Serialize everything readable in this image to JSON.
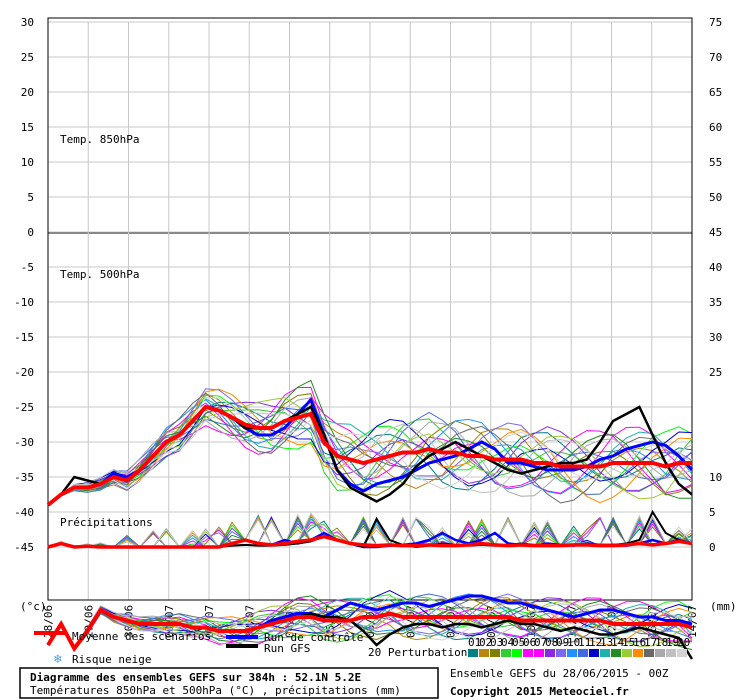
{
  "chart_data": {
    "type": "line",
    "left_axis": {
      "unit_label": "(°c)",
      "ticks": [
        30,
        25,
        20,
        15,
        10,
        5,
        0,
        -5,
        -10,
        -15,
        -20,
        -25,
        -30,
        -35,
        -40,
        -45
      ],
      "range": [
        -45,
        30
      ]
    },
    "right_axis_850": {
      "ticks": [
        75,
        70,
        65,
        60,
        55,
        50,
        45
      ],
      "range": [
        45,
        75
      ]
    },
    "right_axis_500": {
      "ticks": [
        40,
        35,
        30,
        25
      ],
      "range": [
        20,
        40
      ]
    },
    "right_axis_precip": {
      "unit_label": "(mm)",
      "ticks": [
        10,
        5,
        0
      ],
      "range": [
        0,
        10
      ]
    },
    "x_ticks": [
      "28/06",
      "29/06",
      "30/06",
      "01/07",
      "02/07",
      "03/07",
      "04/07",
      "05/07",
      "06/07",
      "07/07",
      "08/07",
      "09/07",
      "10/07",
      "11/07",
      "12/07",
      "13/07",
      "14/07"
    ],
    "panels": {
      "t850": {
        "label": "Temp. 850hPa"
      },
      "t500": {
        "label": "Temp. 500hPa"
      },
      "precip": {
        "label": "Précipitations"
      }
    },
    "series": [
      {
        "name": "Moyenne des scénarios",
        "color": "#ff0000",
        "t850": [
          6,
          7.5,
          8.5,
          8.5,
          9,
          10,
          9.5,
          11,
          13,
          15,
          16,
          18,
          20,
          19.5,
          18.5,
          17.5,
          17,
          17,
          18,
          18.5,
          19,
          15,
          13,
          12.5,
          12,
          12.5,
          13,
          13.5,
          13.5,
          14,
          13.5,
          13.5,
          13,
          13,
          12.5,
          12.5,
          12.5,
          12,
          12,
          11.5,
          11.5,
          11.5,
          11.5,
          12,
          12,
          12,
          12,
          11.5,
          12,
          12
        ],
        "t500": [
          -14,
          -11,
          -14.5,
          -12,
          -9,
          -10,
          -10.5,
          -11,
          -11,
          -11,
          -11,
          -11.5,
          -11.5,
          -12,
          -12,
          -12,
          -11.5,
          -11,
          -10.5,
          -10,
          -10,
          -10.5,
          -10.5,
          -10.5,
          -10,
          -10,
          -9.5,
          -10,
          -10,
          -10,
          -10,
          -10,
          -10,
          -10,
          -10,
          -10,
          -10.5,
          -10.5,
          -10.5,
          -10.5,
          -10.5,
          -10.5,
          -10.5,
          -11,
          -11,
          -11,
          -11,
          -11,
          -11,
          -11.5
        ],
        "precip": [
          0,
          0.5,
          0,
          0.1,
          0,
          0,
          0,
          0,
          0,
          0,
          0,
          0,
          0,
          0,
          0.5,
          1,
          0.5,
          0.3,
          0.5,
          0.8,
          1,
          1.5,
          1,
          0.5,
          0.3,
          0.2,
          0.3,
          0.2,
          0.2,
          0.3,
          0.2,
          0.2,
          0.3,
          0.5,
          0.3,
          0.2,
          0.3,
          0.2,
          0.2,
          0.2,
          0.3,
          0.3,
          0.2,
          0.2,
          0.3,
          0.5,
          0.3,
          0.5,
          0.8,
          0.5
        ]
      },
      {
        "name": "Run de contrôle",
        "color": "#0000ff",
        "t850": [
          6,
          7.5,
          8.5,
          8.5,
          9,
          10.5,
          10,
          11,
          13,
          15,
          16,
          18,
          20,
          19.5,
          18.5,
          17,
          16,
          16,
          17,
          19,
          21,
          16,
          11,
          9,
          8,
          9,
          9.5,
          10,
          11,
          12,
          12.5,
          13,
          14,
          15,
          14,
          12,
          12,
          11.5,
          11,
          11,
          11,
          11.5,
          12.5,
          13,
          14,
          14.5,
          15,
          14.5,
          13,
          11
        ],
        "t500": [
          -14,
          -11,
          -14.5,
          -12,
          -9,
          -10,
          -10.5,
          -11,
          -11,
          -11,
          -11,
          -11.5,
          -11.5,
          -12,
          -12,
          -12,
          -11.5,
          -10.5,
          -10,
          -9.5,
          -9.5,
          -10,
          -9,
          -8,
          -8.5,
          -9,
          -8.5,
          -8,
          -8,
          -8.5,
          -8,
          -7.5,
          -7,
          -7,
          -7.5,
          -8,
          -8,
          -8.5,
          -9,
          -9.5,
          -10,
          -9.5,
          -9,
          -9,
          -9.5,
          -10,
          -10,
          -10.5,
          -10.5,
          -11
        ],
        "precip": [
          0,
          0.5,
          0,
          0.1,
          0,
          0,
          0,
          0,
          0,
          0,
          0,
          0,
          0,
          0,
          0.5,
          1,
          0.5,
          0.3,
          1,
          0.5,
          1,
          2,
          1,
          0.5,
          0,
          0,
          0.2,
          0.3,
          0.5,
          1,
          2,
          1,
          0.5,
          1,
          2,
          0.5,
          0.3,
          0.2,
          0.5,
          0.3,
          0.2,
          0.5,
          0.3,
          0.3,
          0.2,
          0.5,
          1,
          0.5,
          1,
          0.5
        ]
      },
      {
        "name": "Run GFS",
        "color": "#000000",
        "t850": [
          6,
          7.5,
          10,
          9.5,
          9,
          10,
          9.5,
          11,
          13,
          15,
          16,
          18,
          20,
          19.5,
          18.5,
          17,
          17,
          17,
          18,
          19,
          20,
          16,
          11,
          8.5,
          7.5,
          6.5,
          7.5,
          9,
          11.5,
          13,
          14,
          15,
          14,
          13,
          12,
          11,
          10.5,
          11,
          11.5,
          12,
          12,
          12.5,
          15,
          18,
          19,
          20,
          16,
          12,
          9,
          7.5
        ],
        "t500": [
          -14,
          -11,
          -14.5,
          -12,
          -9,
          -10,
          -10.5,
          -11,
          -11,
          -11,
          -11,
          -11.5,
          -11.5,
          -12,
          -12,
          -12,
          -11.5,
          -11,
          -10.5,
          -10,
          -9.5,
          -10,
          -10,
          -10.5,
          -12,
          -14,
          -12.5,
          -11.5,
          -11,
          -11,
          -11.5,
          -11,
          -11,
          -11.5,
          -11,
          -10.5,
          -11,
          -11,
          -11.5,
          -12,
          -11.5,
          -12,
          -12.5,
          -12.5,
          -12,
          -11.5,
          -12,
          -12.5,
          -13,
          -16
        ],
        "precip": [
          0,
          0.5,
          0,
          0.1,
          0,
          0,
          0,
          0,
          0,
          0,
          0,
          0,
          0,
          0,
          0.2,
          0.3,
          0.2,
          0.2,
          0.3,
          0.5,
          0.8,
          1.5,
          1,
          0.5,
          0,
          4,
          1,
          0.3,
          0,
          0.2,
          0.5,
          0.3,
          0.2,
          0.3,
          0.2,
          0.3,
          0.5,
          0.3,
          0.2,
          0.3,
          0.2,
          0.5,
          0.2,
          0.3,
          0.5,
          1,
          5,
          2,
          1,
          0.5
        ]
      }
    ],
    "perturbations": {
      "count": 20,
      "labels": [
        "01",
        "02",
        "03",
        "04",
        "05",
        "06",
        "07",
        "08",
        "09",
        "10",
        "11",
        "12",
        "13",
        "14",
        "15",
        "16",
        "17",
        "18",
        "19",
        "20"
      ],
      "colors": [
        "#008080",
        "#b8860b",
        "#808000",
        "#32cd32",
        "#00ff00",
        "#ff00ff",
        "#ff00ff",
        "#8a2be2",
        "#7b68ee",
        "#1e90ff",
        "#4169e1",
        "#0000cd",
        "#20b2aa",
        "#228b22",
        "#9acd32",
        "#ff8c00",
        "#696969",
        "#a9a9a9",
        "#c0c0c0",
        "#d3d3d3"
      ]
    },
    "legend": {
      "mean": "Moyenne des scénarios",
      "control": "Run de contrôle",
      "gfs": "Run GFS",
      "snow": "Risque neige",
      "perturbations": "20 Perturbations"
    }
  },
  "footer": {
    "title": "Diagramme des ensembles GEFS sur 384h : 52.1N 5.2E",
    "subtitle": "Températures 850hPa et 500hPa (°C) , précipitations (mm)",
    "run_info": "Ensemble GEFS du 28/06/2015 - 00Z",
    "copyright": "Copyright 2015 Meteociel.fr"
  }
}
